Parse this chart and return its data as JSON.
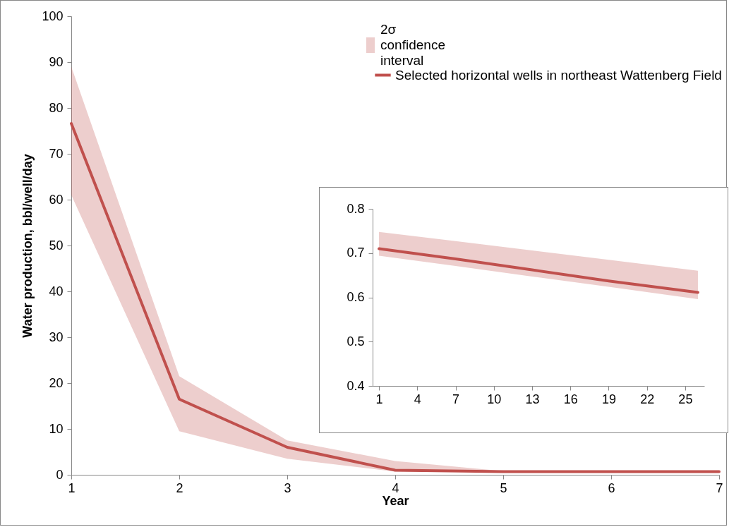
{
  "chart_data": [
    {
      "type": "line",
      "xlabel": "Year",
      "ylabel": "Water production, bbl/well/day",
      "x": [
        1,
        2,
        3,
        4,
        5,
        6,
        7
      ],
      "series": [
        {
          "name": "Selected horizontal wells in northeast Wattenberg Field",
          "color": "#c0504d",
          "values": [
            76.6,
            16.5,
            6,
            1,
            0.7,
            0.7,
            0.7
          ],
          "lower": [
            61,
            9.5,
            3.5,
            0.7,
            0.6,
            0.6,
            0.6
          ],
          "upper": [
            89,
            21.5,
            7.5,
            3,
            0.8,
            0.8,
            0.8
          ]
        }
      ],
      "annotations": [
        "2σ confidence interval"
      ],
      "xlim": [
        1,
        7
      ],
      "xticks": [
        1,
        2,
        3,
        4,
        5,
        6,
        7
      ],
      "ylim": [
        0,
        100
      ],
      "yticks": [
        0,
        10,
        20,
        30,
        40,
        50,
        60,
        70,
        80,
        90,
        100
      ],
      "legend": "top right"
    },
    {
      "type": "line",
      "x": [
        1,
        7,
        13,
        19,
        26
      ],
      "series": [
        {
          "color": "#c0504d",
          "values": [
            0.71,
            0.687,
            0.662,
            0.637,
            0.611
          ],
          "lower": [
            0.694,
            0.671,
            0.647,
            0.624,
            0.596
          ],
          "upper": [
            0.748,
            0.727,
            0.706,
            0.685,
            0.66
          ]
        }
      ],
      "xlim": [
        0.5,
        26.5
      ],
      "xticks": [
        1,
        4,
        7,
        10,
        13,
        16,
        19,
        22,
        25
      ],
      "ylim": [
        0.4,
        0.8
      ],
      "yticks": [
        0.4,
        0.5,
        0.6,
        0.7,
        0.8
      ]
    }
  ]
}
